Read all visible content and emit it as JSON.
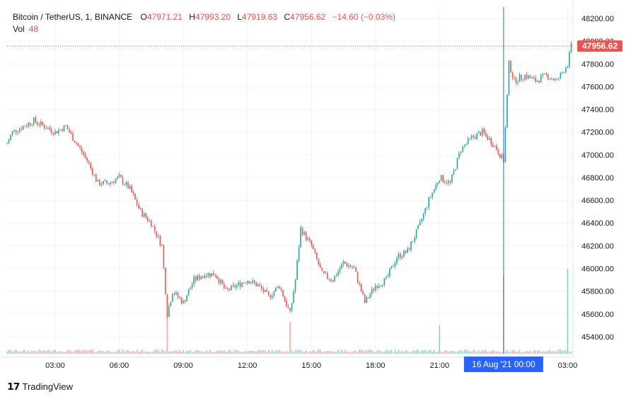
{
  "legend": {
    "symbol": "Bitcoin / TetherUS, 1, BINANCE",
    "open_label": "O",
    "open": "47971.21",
    "high_label": "H",
    "high": "47993.20",
    "low_label": "L",
    "low": "47919.63",
    "close_label": "C",
    "close": "47956.62",
    "change": "−14.60 (−0.03%)",
    "vol_label": "Vol",
    "vol": "48"
  },
  "price_tag": "47956.62",
  "crosshair_time": "16 Aug '21   00:00",
  "branding": "TradingView",
  "colors": {
    "up": "#26a69a",
    "down": "#ef5350",
    "crosshair_tag": "#2962ff",
    "price_tag": "#ef5350"
  },
  "chart_data": {
    "type": "candlestick",
    "title": "Bitcoin / TetherUS, 1, BINANCE",
    "y_ticks": [
      45400,
      45600,
      45800,
      46000,
      46200,
      46400,
      46600,
      46800,
      47000,
      47200,
      47400,
      47600,
      47800,
      48000,
      48200
    ],
    "ylim": [
      45250,
      48300
    ],
    "x_ticks": [
      "03:00",
      "06:00",
      "09:00",
      "12:00",
      "15:00",
      "18:00",
      "21:00",
      "03:00"
    ],
    "x_range": [
      "00:45",
      "03:15 (+1 day)"
    ],
    "last_price": 47956.62,
    "crosshair_x": "00:00",
    "grid": true,
    "approx_price_path": [
      [
        "00:45",
        47100
      ],
      [
        "01:00",
        47200
      ],
      [
        "01:30",
        47250
      ],
      [
        "02:00",
        47300
      ],
      [
        "02:30",
        47250
      ],
      [
        "03:00",
        47200
      ],
      [
        "03:30",
        47250
      ],
      [
        "04:00",
        47100
      ],
      [
        "04:30",
        46950
      ],
      [
        "05:00",
        46750
      ],
      [
        "05:30",
        46750
      ],
      [
        "06:00",
        46800
      ],
      [
        "06:30",
        46700
      ],
      [
        "07:00",
        46500
      ],
      [
        "07:30",
        46400
      ],
      [
        "08:00",
        46200
      ],
      [
        "08:15",
        45600
      ],
      [
        "08:30",
        45800
      ],
      [
        "09:00",
        45700
      ],
      [
        "09:30",
        45900
      ],
      [
        "10:00",
        45950
      ],
      [
        "10:30",
        45950
      ],
      [
        "11:00",
        45800
      ],
      [
        "11:30",
        45850
      ],
      [
        "12:00",
        45900
      ],
      [
        "12:30",
        45850
      ],
      [
        "13:00",
        45750
      ],
      [
        "13:30",
        45850
      ],
      [
        "14:00",
        45600
      ],
      [
        "14:15",
        45900
      ],
      [
        "14:30",
        46350
      ],
      [
        "15:00",
        46200
      ],
      [
        "15:30",
        45950
      ],
      [
        "16:00",
        45900
      ],
      [
        "16:30",
        46050
      ],
      [
        "17:00",
        46000
      ],
      [
        "17:30",
        45700
      ],
      [
        "18:00",
        45850
      ],
      [
        "18:30",
        45900
      ],
      [
        "19:00",
        46100
      ],
      [
        "19:30",
        46150
      ],
      [
        "20:00",
        46350
      ],
      [
        "20:30",
        46600
      ],
      [
        "21:00",
        46800
      ],
      [
        "21:30",
        46750
      ],
      [
        "22:00",
        47050
      ],
      [
        "22:30",
        47150
      ],
      [
        "23:00",
        47200
      ],
      [
        "23:30",
        47100
      ],
      [
        "00:00",
        46950
      ],
      [
        "00:15",
        47800
      ],
      [
        "00:30",
        47650
      ],
      [
        "01:00",
        47700
      ],
      [
        "01:30",
        47650
      ],
      [
        "02:00",
        47700
      ],
      [
        "02:30",
        47650
      ],
      [
        "03:00",
        47800
      ],
      [
        "03:10",
        47956
      ]
    ],
    "volume_spikes": [
      [
        "08:15",
        60
      ],
      [
        "14:00",
        45
      ],
      [
        "21:00",
        40
      ],
      [
        "00:00",
        110
      ],
      [
        "03:00",
        120
      ]
    ]
  }
}
